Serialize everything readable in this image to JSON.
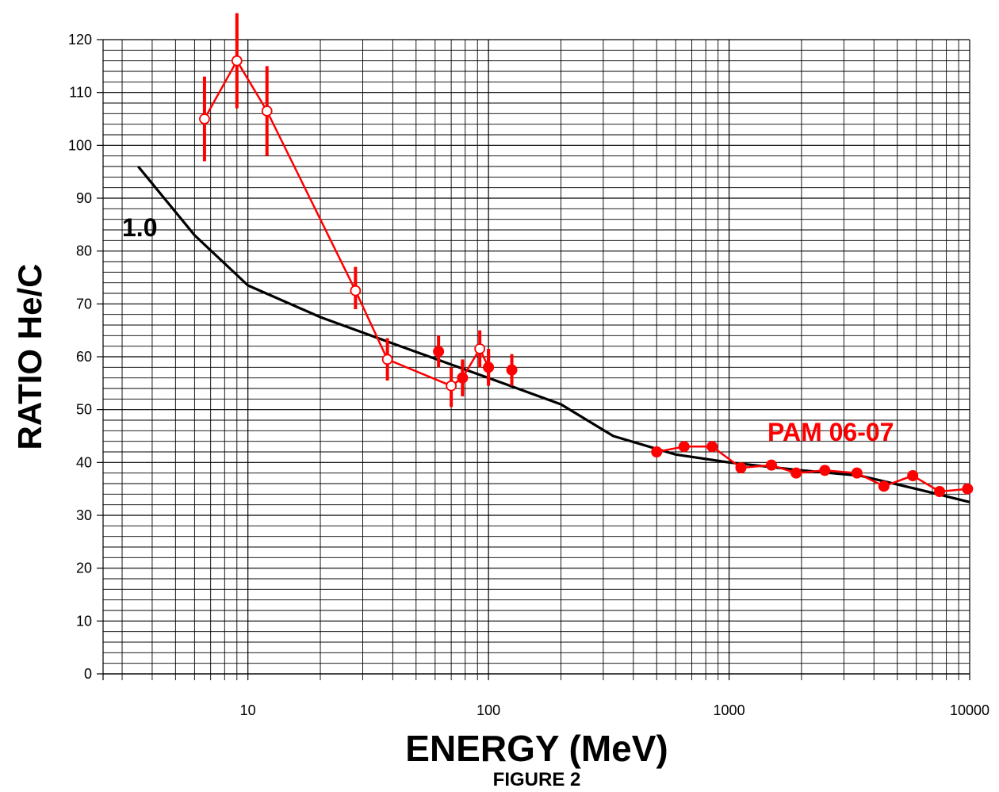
{
  "chart_data": {
    "type": "line",
    "xlabel": "ENERGY (MeV)",
    "ylabel": "RATIO He/C",
    "caption": "FIGURE 2",
    "xscale": "log",
    "xlim": [
      2.5,
      10000
    ],
    "ylim": [
      0,
      120
    ],
    "grid": true,
    "x_ticks": [
      10,
      100,
      1000,
      10000
    ],
    "x_tick_labels": [
      "10",
      "100",
      "1000",
      "10000"
    ],
    "y_ticks": [
      0,
      10,
      20,
      30,
      40,
      50,
      60,
      70,
      80,
      90,
      100,
      110,
      120
    ],
    "y_tick_labels": [
      "0",
      "10",
      "20",
      "30",
      "40",
      "50",
      "60",
      "70",
      "80",
      "90",
      "100",
      "110",
      "120"
    ],
    "colors": {
      "model": "#000000",
      "data": "#ff0000"
    },
    "series": [
      {
        "label": "1.0",
        "color": "#000000",
        "x": [
          3.5,
          6,
          10,
          20,
          40,
          100,
          200,
          330,
          600,
          1000,
          2000,
          3500,
          6000,
          10000
        ],
        "y": [
          96,
          83,
          73.5,
          67.5,
          62.5,
          56,
          51,
          45,
          41.5,
          40,
          38.5,
          37.5,
          35,
          32.5
        ]
      },
      {
        "color": "#ff0000",
        "marker": "open-circle",
        "x": [
          6.6,
          9,
          12,
          28,
          38,
          70,
          78,
          92,
          100
        ],
        "y": [
          105,
          116,
          106.5,
          72.5,
          59.5,
          54.5,
          56,
          61.5,
          58
        ],
        "err_low": [
          97,
          107,
          98,
          69,
          55.5,
          50.5,
          52.5,
          58,
          54.5
        ],
        "err_high": [
          113,
          125,
          115,
          77,
          63.5,
          58,
          59.5,
          65,
          61.5
        ]
      },
      {
        "color": "#ff0000",
        "marker": "filled-circle",
        "x": [
          62,
          78,
          100,
          125
        ],
        "y": [
          61,
          56,
          58,
          57.5
        ],
        "err_low": [
          58,
          53,
          55,
          54.5
        ],
        "err_high": [
          64,
          59,
          61,
          60.5
        ],
        "connected": false
      },
      {
        "label": "PAM 06-07",
        "color": "#ff0000",
        "marker": "filled-circle",
        "x": [
          500,
          650,
          850,
          1120,
          1500,
          1900,
          2500,
          3400,
          4400,
          5800,
          7500,
          9800
        ],
        "y": [
          42,
          43,
          43,
          39,
          39.5,
          38,
          38.5,
          38,
          35.5,
          37.5,
          34.5,
          35
        ]
      }
    ]
  }
}
